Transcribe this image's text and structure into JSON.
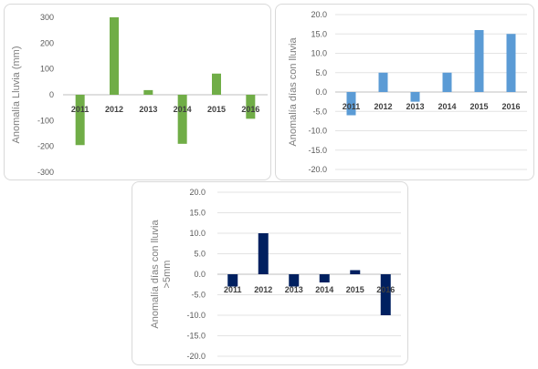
{
  "chart_data": [
    {
      "type": "bar",
      "categories": [
        "2011",
        "2012",
        "2013",
        "2014",
        "2015",
        "2016"
      ],
      "values": [
        -195,
        300,
        18,
        -190,
        82,
        -93
      ],
      "ylabel": "Anomalía Lluvia (mm)",
      "ylim": [
        -300,
        300
      ],
      "yticks": [
        "300",
        "200",
        "100",
        "0",
        "-100",
        "-200",
        "-300"
      ],
      "grid": false,
      "color": "#70ad47"
    },
    {
      "type": "bar",
      "categories": [
        "2011",
        "2012",
        "2013",
        "2014",
        "2015",
        "2016"
      ],
      "values": [
        -6,
        5,
        -2.5,
        5,
        16,
        15
      ],
      "ylabel": "Anomalía días con lluvia",
      "ylim": [
        -20,
        20
      ],
      "yticks": [
        "20.0",
        "15.0",
        "10.0",
        "5.0",
        "0.0",
        "-5.0",
        "-10.0",
        "-15.0",
        "-20.0"
      ],
      "grid": true,
      "color": "#5b9bd5"
    },
    {
      "type": "bar",
      "categories": [
        "2011",
        "2012",
        "2013",
        "2014",
        "2015",
        "2016"
      ],
      "values": [
        -3,
        10,
        -3,
        -2,
        1,
        -10
      ],
      "ylabel_lines": [
        "Anomalía días con lluvia",
        ">5mm"
      ],
      "ylim": [
        -20,
        20
      ],
      "yticks": [
        "20.0",
        "15.0",
        "10.0",
        "5.0",
        "0.0",
        "-5.0",
        "-10.0",
        "-15.0",
        "-20.0"
      ],
      "grid": true,
      "color": "#002060"
    }
  ]
}
